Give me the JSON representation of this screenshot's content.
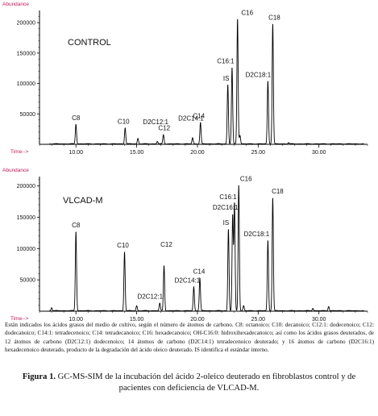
{
  "chart_data": [
    {
      "type": "line",
      "title": "CONTROL",
      "ylabel": "Abundance",
      "xlabel": "Time-->",
      "xlim": [
        7.0,
        34.0
      ],
      "ylim": [
        0,
        220000
      ],
      "xticks": [
        "10.00",
        "15.00",
        "20.00",
        "25.00",
        "30.00"
      ],
      "yticks": [
        "50000",
        "100000",
        "150000",
        "200000"
      ],
      "peaks": [
        {
          "label": "C8",
          "time": 10.0,
          "abundance": 32000
        },
        {
          "label": "C10",
          "time": 14.05,
          "abundance": 26000
        },
        {
          "label": "",
          "time": 15.1,
          "abundance": 9000
        },
        {
          "label": "D2C12:1",
          "time": 16.7,
          "abundance": 4000
        },
        {
          "label": "C12",
          "time": 17.2,
          "abundance": 15000
        },
        {
          "label": "D2C14:1",
          "time": 19.6,
          "abundance": 10000
        },
        {
          "label": "C14",
          "time": 20.25,
          "abundance": 35000
        },
        {
          "label": "IS",
          "time": 22.5,
          "abundance": 97000
        },
        {
          "label": "C16:1",
          "time": 22.85,
          "abundance": 125000
        },
        {
          "label": "C16",
          "time": 23.3,
          "abundance": 205000
        },
        {
          "label": "",
          "time": 23.5,
          "abundance": 14000
        },
        {
          "label": "D2C18:1",
          "time": 25.8,
          "abundance": 103000
        },
        {
          "label": "C18",
          "time": 26.2,
          "abundance": 197000
        },
        {
          "label": "",
          "time": 27.5,
          "abundance": 2000
        }
      ]
    },
    {
      "type": "line",
      "title": "VLCAD-M",
      "ylabel": "Abundance",
      "xlabel": "Time-->",
      "xlim": [
        7.0,
        34.0
      ],
      "ylim": [
        0,
        215000
      ],
      "xticks": [
        "10.00",
        "15.00",
        "20.00",
        "25.00",
        "30.00"
      ],
      "yticks": [
        "50000",
        "100000",
        "150000",
        "200000"
      ],
      "peaks": [
        {
          "label": "",
          "time": 8.0,
          "abundance": 5000
        },
        {
          "label": "C8",
          "time": 10.0,
          "abundance": 126000
        },
        {
          "label": "C10",
          "time": 14.0,
          "abundance": 94000
        },
        {
          "label": "",
          "time": 15.0,
          "abundance": 8000
        },
        {
          "label": "D2C12:1",
          "time": 16.9,
          "abundance": 12000
        },
        {
          "label": "C12",
          "time": 17.25,
          "abundance": 72000
        },
        {
          "label": "D2C14:1",
          "time": 19.7,
          "abundance": 38000
        },
        {
          "label": "C14",
          "time": 20.2,
          "abundance": 52000
        },
        {
          "label": "IS",
          "time": 22.55,
          "abundance": 130000
        },
        {
          "label": "D2C16:1",
          "time": 22.9,
          "abundance": 152000
        },
        {
          "label": "C16:1",
          "time": 23.05,
          "abundance": 171000
        },
        {
          "label": "C16",
          "time": 23.4,
          "abundance": 200000
        },
        {
          "label": "",
          "time": 23.8,
          "abundance": 8000
        },
        {
          "label": "D2C18:1",
          "time": 25.8,
          "abundance": 112000
        },
        {
          "label": "C18",
          "time": 26.2,
          "abundance": 180000
        },
        {
          "label": "",
          "time": 29.5,
          "abundance": 4000
        },
        {
          "label": "",
          "time": 30.8,
          "abundance": 7000
        }
      ]
    }
  ],
  "caption": "Están indicados los ácidos grasos del medio de cultivo, según el número de átomos de carbono. C8: octanoico; C10: decanoico; C12:1: dodecenoico; C12: dodecanoico; C14:1: tetradecenoico; C14: tetradecanoico; C16: hexadecanoico; OH-C16:0: hidroxihexadecanoico; así como los ácidos grasos deuterados, de 12 átomos de carbono (D2C12:1) dodecenoico; 14 átomos de carbono (D2C14:1) tetradecenoico deuterado; y 16 átomos de carbono (D2C16:1) hexadecenoico deuterado, producto de la degradación del ácido oleico deuterado. IS identifica el estándar interno.",
  "figure_label": "Figura 1.",
  "figure_title": " GC-MS-SIM de la incubación del ácido 2-oleico deuterado en fibroblastos control y de pacientes con deficiencia de VLCAD-M."
}
